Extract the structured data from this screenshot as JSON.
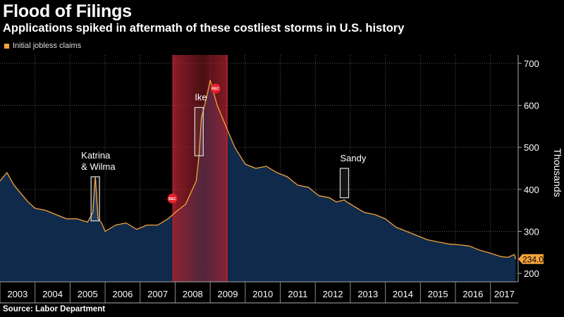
{
  "title": "Flood of Filings",
  "subtitle": "Applications spiked in aftermath of these costliest storms in U.S. history",
  "legend": {
    "label": "Initial jobless claims",
    "color": "#f4a33a"
  },
  "source": "Source: Labor Department",
  "colors": {
    "line": "#f4a33a",
    "area": "#0f2a4a",
    "recession": "#a5212e",
    "grid": "#555555",
    "callout_bg": "#f4a33a"
  },
  "chart_data": {
    "type": "area",
    "title": "Flood of Filings",
    "ylabel": "Thousands",
    "xlabel": "",
    "xlim": [
      2003,
      2017.75
    ],
    "ylim": [
      180,
      720
    ],
    "yticks": [
      200,
      300,
      400,
      500,
      600,
      700
    ],
    "xticks": [
      "2003",
      "2004",
      "2005",
      "2006",
      "2007",
      "2008",
      "2009",
      "2010",
      "2011",
      "2012",
      "2013",
      "2014",
      "2015",
      "2016",
      "2017"
    ],
    "series": [
      {
        "name": "Initial jobless claims",
        "x": [
          2003.0,
          2003.2,
          2003.4,
          2003.6,
          2003.8,
          2004.0,
          2004.3,
          2004.6,
          2004.9,
          2005.2,
          2005.5,
          2005.65,
          2005.72,
          2005.8,
          2005.9,
          2006.0,
          2006.3,
          2006.6,
          2006.9,
          2007.2,
          2007.5,
          2007.8,
          2008.0,
          2008.3,
          2008.6,
          2008.68,
          2008.75,
          2008.9,
          2009.0,
          2009.1,
          2009.2,
          2009.4,
          2009.7,
          2010.0,
          2010.3,
          2010.6,
          2010.9,
          2011.2,
          2011.5,
          2011.8,
          2012.1,
          2012.4,
          2012.6,
          2012.83,
          2012.9,
          2013.1,
          2013.4,
          2013.7,
          2014.0,
          2014.3,
          2014.6,
          2014.9,
          2015.2,
          2015.5,
          2015.8,
          2016.1,
          2016.4,
          2016.7,
          2017.0,
          2017.3,
          2017.5,
          2017.68,
          2017.72
        ],
        "values": [
          420,
          440,
          410,
          390,
          370,
          355,
          350,
          340,
          330,
          330,
          322,
          345,
          430,
          330,
          320,
          300,
          315,
          320,
          305,
          315,
          315,
          330,
          345,
          365,
          420,
          480,
          570,
          620,
          660,
          630,
          600,
          560,
          500,
          460,
          450,
          455,
          440,
          430,
          410,
          405,
          385,
          380,
          370,
          375,
          370,
          360,
          345,
          340,
          330,
          310,
          300,
          290,
          280,
          275,
          270,
          268,
          265,
          255,
          248,
          240,
          238,
          245,
          234
        ]
      }
    ],
    "last_value_label": "234.0",
    "recession": {
      "start": 2007.92,
      "end": 2009.5
    },
    "annotations": [
      {
        "label_lines": [
          "Katrina",
          "& Wilma"
        ],
        "x": 2005.72,
        "y_low": 325,
        "y_high": 430
      },
      {
        "label_lines": [
          "Ike"
        ],
        "x": 2008.68,
        "y_low": 480,
        "y_high": 595
      },
      {
        "label_lines": [
          "Sandy"
        ],
        "x": 2012.83,
        "y_low": 380,
        "y_high": 450
      }
    ],
    "recession_markers": [
      {
        "label": "REC",
        "x": 2007.92,
        "y": 378
      },
      {
        "label": "REC",
        "x": 2009.15,
        "y": 640
      }
    ]
  }
}
